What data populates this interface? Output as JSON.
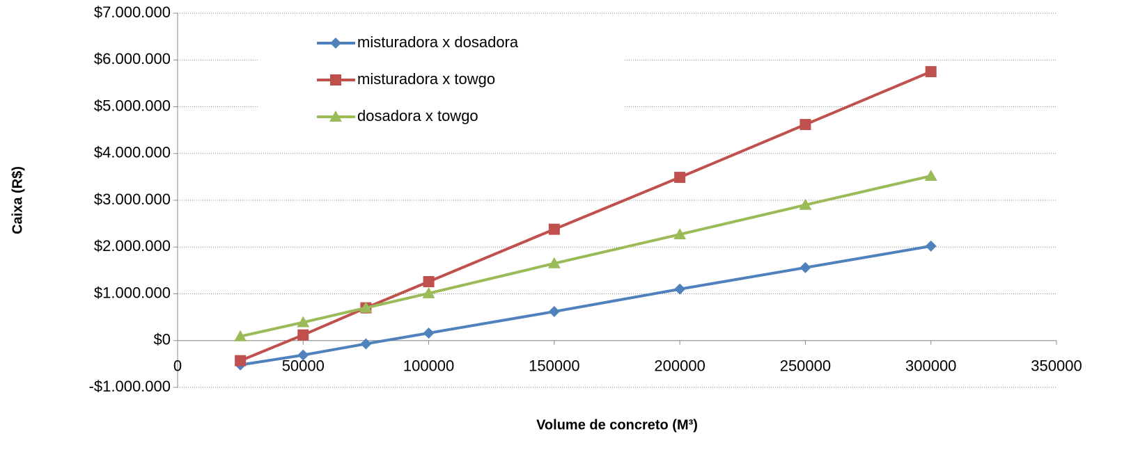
{
  "chart_data": {
    "type": "line",
    "x_label": "Volume de concreto (M³)",
    "y_label": "Caixa (R$)",
    "x": [
      25000,
      50000,
      75000,
      100000,
      150000,
      200000,
      250000,
      300000
    ],
    "series": [
      {
        "name": "misturadora x dosadora",
        "color": "#4f81bd",
        "marker": "diamond",
        "values": [
          -520000,
          -310000,
          -70000,
          160000,
          620000,
          1100000,
          1560000,
          2020000
        ]
      },
      {
        "name": "misturadora x towgo",
        "color": "#c0504d",
        "marker": "square",
        "values": [
          -430000,
          120000,
          700000,
          1260000,
          2380000,
          3490000,
          4620000,
          5750000
        ]
      },
      {
        "name": "dosadora x towgo",
        "color": "#9bbb59",
        "marker": "triangle",
        "values": [
          90000,
          390000,
          700000,
          1010000,
          1650000,
          2270000,
          2900000,
          3520000
        ]
      }
    ],
    "xlim": [
      0,
      350000
    ],
    "xticks": [
      0,
      50000,
      100000,
      150000,
      200000,
      250000,
      300000,
      350000
    ],
    "ylim": [
      -1000000,
      7000000
    ],
    "yticks": [
      {
        "value": -1000000,
        "label": "-$1.000.000"
      },
      {
        "value": 0,
        "label": "$0"
      },
      {
        "value": 1000000,
        "label": "$1.000.000"
      },
      {
        "value": 2000000,
        "label": "$2.000.000"
      },
      {
        "value": 3000000,
        "label": "$3.000.000"
      },
      {
        "value": 4000000,
        "label": "$4.000.000"
      },
      {
        "value": 5000000,
        "label": "$5.000.000"
      },
      {
        "value": 6000000,
        "label": "$6.000.000"
      },
      {
        "value": 7000000,
        "label": "$7.000.000"
      }
    ],
    "grid": true,
    "legend": "upper left"
  }
}
